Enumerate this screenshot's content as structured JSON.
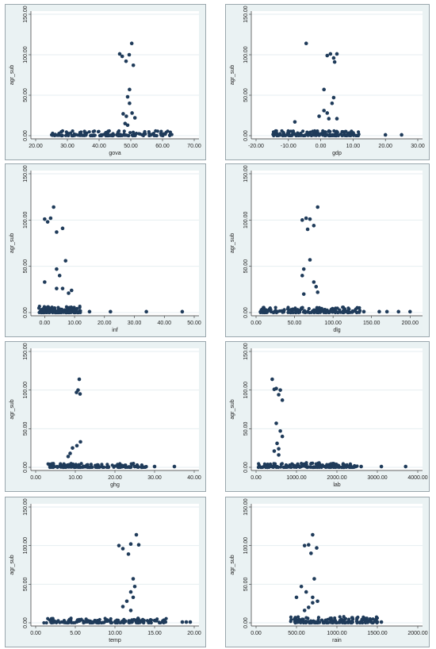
{
  "chart_data": [
    {
      "type": "scatter",
      "xlabel": "gova",
      "ylabel": "agr_sub",
      "xlim": [
        20,
        70
      ],
      "ylim": [
        0,
        150
      ],
      "xticks": [
        "20.00",
        "30.00",
        "40.00",
        "50.00",
        "60.00",
        "70.00"
      ],
      "yticks": [
        "0.00",
        "50.00",
        "100.00",
        "150.00"
      ],
      "grid": true,
      "points": [
        [
          46.5,
          101
        ],
        [
          47.3,
          98
        ],
        [
          48.5,
          92
        ],
        [
          49.5,
          100
        ],
        [
          50.3,
          114
        ],
        [
          50.8,
          87
        ],
        [
          49.6,
          57
        ],
        [
          49,
          48
        ],
        [
          49.6,
          40
        ],
        [
          47.6,
          27
        ],
        [
          48.6,
          24
        ],
        [
          50.4,
          28
        ],
        [
          51.3,
          22
        ],
        [
          48.2,
          15
        ],
        [
          49,
          13
        ]
      ],
      "cluster": {
        "xmin": 25,
        "xmax": 64,
        "ymin": 0,
        "ymax": 6
      }
    },
    {
      "type": "scatter",
      "xlabel": "gdp",
      "ylabel": "agr_sub",
      "xlim": [
        -20,
        30
      ],
      "ylim": [
        0,
        150
      ],
      "xticks": [
        "-20.00",
        "-10.00",
        "0.00",
        "10.00",
        "20.00",
        "30.00"
      ],
      "yticks": [
        "0.00",
        "50.00",
        "100.00",
        "150.00"
      ],
      "grid": true,
      "points": [
        [
          -4.5,
          114
        ],
        [
          2,
          99
        ],
        [
          3,
          101
        ],
        [
          4,
          96
        ],
        [
          5,
          101
        ],
        [
          4.3,
          91
        ],
        [
          1,
          57
        ],
        [
          4,
          47
        ],
        [
          3.5,
          40
        ],
        [
          1,
          31
        ],
        [
          2,
          28
        ],
        [
          5,
          21
        ],
        [
          -0.5,
          24
        ],
        [
          -8,
          17
        ],
        [
          2.5,
          21
        ],
        [
          20,
          1
        ],
        [
          25,
          1
        ]
      ],
      "cluster": {
        "xmin": -15,
        "xmax": 12,
        "ymin": 0,
        "ymax": 6
      }
    },
    {
      "type": "scatter",
      "xlabel": "inf",
      "ylabel": "agr_sub",
      "xlim": [
        -3,
        50
      ],
      "ylim": [
        0,
        150
      ],
      "xticks": [
        "0.00",
        "10.00",
        "20.00",
        "30.00",
        "40.00",
        "50.00"
      ],
      "yticks": [
        "0.00",
        "50.00",
        "100.00",
        "150.00"
      ],
      "grid": true,
      "points": [
        [
          0,
          101
        ],
        [
          1,
          98
        ],
        [
          2,
          102
        ],
        [
          3,
          114
        ],
        [
          4,
          87
        ],
        [
          6,
          91
        ],
        [
          7,
          56
        ],
        [
          4,
          47
        ],
        [
          5,
          40
        ],
        [
          0,
          33
        ],
        [
          4,
          26
        ],
        [
          6,
          26
        ],
        [
          9,
          24
        ],
        [
          8,
          21
        ],
        [
          10,
          2
        ],
        [
          15,
          1
        ],
        [
          22,
          1
        ],
        [
          34,
          1
        ],
        [
          46,
          1
        ]
      ],
      "cluster": {
        "xmin": -2,
        "xmax": 12,
        "ymin": 0,
        "ymax": 7
      }
    },
    {
      "type": "scatter",
      "xlabel": "dlg",
      "ylabel": "agr_sub",
      "xlim": [
        0,
        210
      ],
      "ylim": [
        0,
        150
      ],
      "xticks": [
        "0.00",
        "50.00",
        "100.00",
        "150.00",
        "200.00"
      ],
      "yticks": [
        "0.00",
        "50.00",
        "100.00",
        "150.00"
      ],
      "grid": true,
      "points": [
        [
          60,
          100
        ],
        [
          65,
          102
        ],
        [
          70,
          101
        ],
        [
          75,
          94
        ],
        [
          80,
          114
        ],
        [
          67,
          90
        ],
        [
          70,
          57
        ],
        [
          62,
          47
        ],
        [
          60,
          40
        ],
        [
          75,
          33
        ],
        [
          78,
          28
        ],
        [
          80,
          22
        ],
        [
          62,
          20
        ],
        [
          140,
          1
        ],
        [
          160,
          1
        ],
        [
          170,
          1
        ],
        [
          185,
          1
        ],
        [
          200,
          1
        ]
      ],
      "cluster": {
        "xmin": 5,
        "xmax": 135,
        "ymin": 0,
        "ymax": 6
      }
    },
    {
      "type": "scatter",
      "xlabel": "ghg",
      "ylabel": "agr_sub",
      "xlim": [
        0,
        40
      ],
      "ylim": [
        0,
        150
      ],
      "xticks": [
        "0.00",
        "10.00",
        "20.00",
        "30.00",
        "40.00"
      ],
      "yticks": [
        "0.00",
        "50.00",
        "100.00",
        "150.00"
      ],
      "grid": true,
      "points": [
        [
          11,
          114
        ],
        [
          10.7,
          100
        ],
        [
          10.3,
          97
        ],
        [
          11.2,
          95
        ],
        [
          11.3,
          33
        ],
        [
          10.4,
          28
        ],
        [
          9.3,
          25
        ],
        [
          8.7,
          18
        ],
        [
          8.2,
          14
        ],
        [
          25,
          1
        ],
        [
          30,
          1
        ],
        [
          35,
          1
        ]
      ],
      "cluster": {
        "xmin": 3,
        "xmax": 28,
        "ymin": 0,
        "ymax": 5
      }
    },
    {
      "type": "scatter",
      "xlabel": "lab",
      "ylabel": "agr_sub",
      "xlim": [
        0,
        4000
      ],
      "ylim": [
        0,
        150
      ],
      "xticks": [
        "0.00",
        "1000.00",
        "2000.00",
        "3000.00",
        "4000.00"
      ],
      "yticks": [
        "0.00",
        "50.00",
        "100.00",
        "150.00"
      ],
      "grid": true,
      "points": [
        [
          400,
          114
        ],
        [
          450,
          101
        ],
        [
          500,
          102
        ],
        [
          600,
          100
        ],
        [
          560,
          94
        ],
        [
          650,
          87
        ],
        [
          500,
          57
        ],
        [
          600,
          47
        ],
        [
          650,
          40
        ],
        [
          520,
          31
        ],
        [
          560,
          24
        ],
        [
          450,
          21
        ],
        [
          560,
          16
        ],
        [
          2000,
          1
        ],
        [
          2300,
          1
        ],
        [
          2600,
          1
        ],
        [
          3100,
          1
        ],
        [
          3700,
          1
        ]
      ],
      "cluster": {
        "xmin": 50,
        "xmax": 2500,
        "ymin": 0,
        "ymax": 6
      }
    },
    {
      "type": "scatter",
      "xlabel": "temp",
      "ylabel": "agr_sub",
      "xlim": [
        0,
        20
      ],
      "ylim": [
        0,
        150
      ],
      "xticks": [
        "0.00",
        "5.00",
        "10.00",
        "15.00",
        "20.00"
      ],
      "yticks": [
        "0.00",
        "50.00",
        "100.00",
        "150.00"
      ],
      "grid": true,
      "points": [
        [
          10.5,
          100
        ],
        [
          11,
          96
        ],
        [
          12,
          102
        ],
        [
          12.7,
          114
        ],
        [
          13,
          101
        ],
        [
          11.7,
          89
        ],
        [
          12.3,
          57
        ],
        [
          12.5,
          47
        ],
        [
          12,
          40
        ],
        [
          12.3,
          33
        ],
        [
          11.5,
          28
        ],
        [
          11,
          21
        ],
        [
          12,
          16
        ],
        [
          19,
          1
        ],
        [
          19.5,
          1
        ],
        [
          18.5,
          1
        ]
      ],
      "cluster": {
        "xmin": 1,
        "xmax": 16.5,
        "ymin": 0,
        "ymax": 6
      }
    },
    {
      "type": "scatter",
      "xlabel": "rain",
      "ylabel": "agr_sub",
      "xlim": [
        0,
        2000
      ],
      "ylim": [
        0,
        150
      ],
      "xticks": [
        "0.00",
        "500.00",
        "1000.00",
        "1500.00",
        "2000.00"
      ],
      "yticks": [
        "0.00",
        "50.00",
        "100.00",
        "150.00"
      ],
      "grid": true,
      "points": [
        [
          600,
          100
        ],
        [
          650,
          101
        ],
        [
          700,
          114
        ],
        [
          750,
          97
        ],
        [
          680,
          90
        ],
        [
          720,
          57
        ],
        [
          560,
          47
        ],
        [
          500,
          33
        ],
        [
          620,
          40
        ],
        [
          700,
          33
        ],
        [
          760,
          28
        ],
        [
          700,
          26
        ],
        [
          650,
          20
        ],
        [
          600,
          16
        ],
        [
          1500,
          1
        ],
        [
          1550,
          1
        ]
      ],
      "cluster": {
        "xmin": 400,
        "xmax": 1500,
        "ymin": 0,
        "ymax": 8
      }
    }
  ]
}
